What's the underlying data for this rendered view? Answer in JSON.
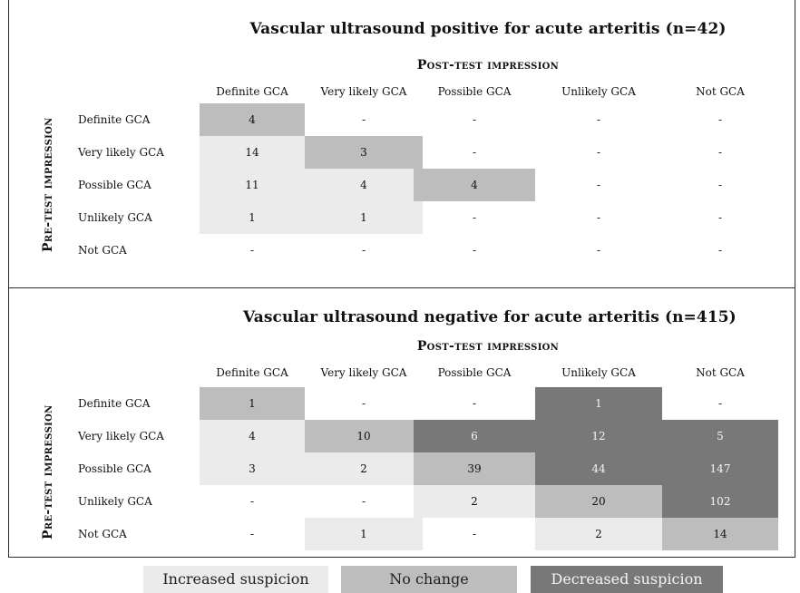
{
  "columns": [
    "Definite GCA",
    "Very likely GCA",
    "Possible GCA",
    "Unlikely GCA",
    "Not GCA"
  ],
  "rows": [
    "Definite GCA",
    "Very likely GCA",
    "Possible GCA",
    "Unlikely GCA",
    "Not GCA"
  ],
  "panels": [
    {
      "title": "Vascular ultrasound positive for acute arteritis (n=42)",
      "post_label": "Post-test impression",
      "pre_label": "Pre-test impression",
      "values": [
        [
          "4",
          "-",
          "-",
          "-",
          "-"
        ],
        [
          "14",
          "3",
          "-",
          "-",
          "-"
        ],
        [
          "11",
          "4",
          "4",
          "-",
          "-"
        ],
        [
          "1",
          "1",
          "-",
          "-",
          "-"
        ],
        [
          "-",
          "-",
          "-",
          "-",
          "-"
        ]
      ],
      "shading": [
        [
          "no-change",
          "none",
          "none",
          "none",
          "none"
        ],
        [
          "increased",
          "no-change",
          "none",
          "none",
          "none"
        ],
        [
          "increased",
          "increased",
          "no-change",
          "none",
          "none"
        ],
        [
          "increased",
          "increased",
          "none",
          "none",
          "none"
        ],
        [
          "none",
          "none",
          "none",
          "none",
          "none"
        ]
      ]
    },
    {
      "title": "Vascular ultrasound negative for acute arteritis (n=415)",
      "post_label": "Post-test impression",
      "pre_label": "Pre-test impression",
      "values": [
        [
          "1",
          "-",
          "-",
          "1",
          "-"
        ],
        [
          "4",
          "10",
          "6",
          "12",
          "5"
        ],
        [
          "3",
          "2",
          "39",
          "44",
          "147"
        ],
        [
          "-",
          "-",
          "2",
          "20",
          "102"
        ],
        [
          "-",
          "1",
          "-",
          "2",
          "14"
        ]
      ],
      "shading": [
        [
          "no-change",
          "none",
          "none",
          "decreased",
          "none"
        ],
        [
          "increased",
          "no-change",
          "decreased",
          "decreased",
          "decreased"
        ],
        [
          "increased",
          "increased",
          "no-change",
          "decreased",
          "decreased"
        ],
        [
          "none",
          "none",
          "increased",
          "no-change",
          "decreased"
        ],
        [
          "none",
          "increased",
          "none",
          "increased",
          "no-change"
        ]
      ]
    }
  ],
  "legend": {
    "increased": "Increased suspicion",
    "no_change": "No change",
    "decreased": "Decreased suspicion"
  },
  "colors": {
    "increased": "#ebebeb",
    "no_change": "#bdbdbd",
    "decreased": "#787878"
  }
}
